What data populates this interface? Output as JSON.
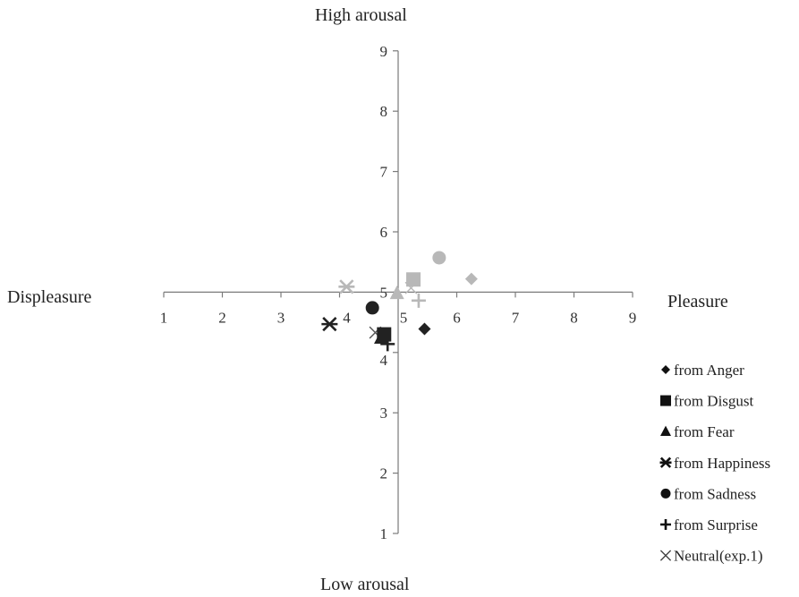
{
  "chart_data": {
    "type": "scatter",
    "axes": {
      "top_label": "High arousal",
      "bottom_label": "Low arousal",
      "left_label": "Displeasure",
      "right_label": "Pleasure",
      "x_range": [
        1,
        9
      ],
      "y_range": [
        1,
        9
      ],
      "x_ticks": [
        "1",
        "2",
        "3",
        "4",
        "5",
        "6",
        "7",
        "8",
        "9"
      ],
      "y_ticks": [
        "1",
        "2",
        "3",
        "4",
        "5",
        "6",
        "7",
        "8",
        "9"
      ],
      "crossing": [
        5,
        5
      ],
      "grid": false
    },
    "legend_position": "right",
    "series": [
      {
        "name": "from Anger",
        "marker": "diamond",
        "points": [
          {
            "x": 5.45,
            "y": 4.39,
            "color": "#222222"
          },
          {
            "x": 6.25,
            "y": 5.22,
            "color": "#b8b8b8"
          }
        ]
      },
      {
        "name": "from Disgust",
        "marker": "square",
        "points": [
          {
            "x": 4.76,
            "y": 4.3,
            "color": "#222222"
          },
          {
            "x": 5.26,
            "y": 5.21,
            "color": "#b8b8b8"
          }
        ]
      },
      {
        "name": "from Fear",
        "marker": "triangle",
        "points": [
          {
            "x": 4.71,
            "y": 4.24,
            "color": "#222222"
          },
          {
            "x": 4.98,
            "y": 4.98,
            "color": "#b8b8b8"
          }
        ]
      },
      {
        "name": "from Happiness",
        "marker": "asterisk",
        "points": [
          {
            "x": 3.83,
            "y": 4.47,
            "color": "#222222"
          },
          {
            "x": 4.12,
            "y": 5.09,
            "color": "#b8b8b8"
          }
        ]
      },
      {
        "name": "from Sadness",
        "marker": "circle",
        "points": [
          {
            "x": 4.56,
            "y": 4.74,
            "color": "#222222"
          },
          {
            "x": 5.7,
            "y": 5.57,
            "color": "#b8b8b8"
          }
        ]
      },
      {
        "name": "from Surprise",
        "marker": "plus",
        "points": [
          {
            "x": 4.82,
            "y": 4.14,
            "color": "#222222"
          },
          {
            "x": 5.35,
            "y": 4.86,
            "color": "#b8b8b8"
          }
        ]
      },
      {
        "name": "Neutral(exp.1)",
        "marker": "cross",
        "points": [
          {
            "x": 4.61,
            "y": 4.33,
            "color": "#555555"
          },
          {
            "x": 5.22,
            "y": 5.07,
            "color": "#b8b8b8"
          }
        ]
      }
    ]
  }
}
